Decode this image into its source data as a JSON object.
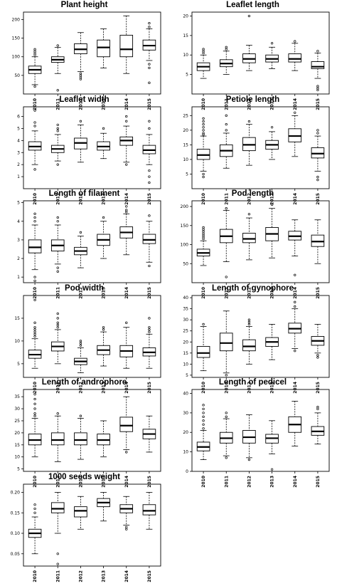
{
  "chart_data": [
    {
      "type": "box",
      "title": "Plant height",
      "categories": [
        "2010",
        "2011",
        "2012",
        "2013",
        "2014",
        "2015"
      ],
      "ylim": [
        0,
        220
      ],
      "yticks": [
        50,
        100,
        150,
        200
      ],
      "boxes": [
        {
          "low": 25,
          "q1": 55,
          "median": 65,
          "q3": 75,
          "high": 100,
          "outliers": [
            105,
            110,
            115,
            120,
            20
          ]
        },
        {
          "low": 55,
          "q1": 85,
          "median": 92,
          "q3": 100,
          "high": 125,
          "outliers": [
            130,
            10
          ]
        },
        {
          "low": 60,
          "q1": 108,
          "median": 120,
          "q3": 135,
          "high": 165,
          "outliers": [
            55,
            50,
            45,
            40
          ]
        },
        {
          "low": 70,
          "q1": 100,
          "median": 125,
          "q3": 145,
          "high": 175,
          "outliers": []
        },
        {
          "low": 55,
          "q1": 100,
          "median": 120,
          "q3": 158,
          "high": 210,
          "outliers": []
        },
        {
          "low": 90,
          "q1": 118,
          "median": 130,
          "q3": 145,
          "high": 175,
          "outliers": [
            180,
            190,
            80,
            70,
            30
          ]
        }
      ]
    },
    {
      "type": "box",
      "title": "Leaflet length",
      "categories": [
        "2010",
        "2011",
        "2012",
        "2013",
        "2014",
        "2015"
      ],
      "ylim": [
        0,
        21
      ],
      "yticks": [
        5,
        10,
        15,
        20
      ],
      "boxes": [
        {
          "low": 4,
          "q1": 6,
          "median": 7,
          "q3": 8,
          "high": 10,
          "outliers": [
            10.5,
            11,
            11.5
          ]
        },
        {
          "low": 5,
          "q1": 7,
          "median": 7.8,
          "q3": 8.8,
          "high": 11,
          "outliers": [
            11.5,
            12
          ]
        },
        {
          "low": 6,
          "q1": 8,
          "median": 9,
          "q3": 10.3,
          "high": 12.5,
          "outliers": [
            20
          ]
        },
        {
          "low": 6.5,
          "q1": 8.2,
          "median": 9,
          "q3": 10,
          "high": 12,
          "outliers": [
            13
          ]
        },
        {
          "low": 6,
          "q1": 8.2,
          "median": 9,
          "q3": 10.3,
          "high": 13,
          "outliers": [
            13.5
          ]
        },
        {
          "low": 4,
          "q1": 6.5,
          "median": 7,
          "q3": 8.3,
          "high": 10.5,
          "outliers": [
            11,
            2,
            1.5,
            1
          ]
        }
      ]
    },
    {
      "type": "box",
      "title": "Leaflet width",
      "categories": [
        "2010",
        "2011",
        "2012",
        "2013",
        "2014",
        "2015"
      ],
      "ylim": [
        0,
        6.8
      ],
      "yticks": [
        1,
        2,
        3,
        4,
        5,
        6
      ],
      "boxes": [
        {
          "low": 2,
          "q1": 3.2,
          "median": 3.5,
          "q3": 3.9,
          "high": 4.8,
          "outliers": [
            6.5,
            5.5,
            5.2,
            1.6
          ]
        },
        {
          "low": 2.3,
          "q1": 3,
          "median": 3.3,
          "q3": 3.6,
          "high": 4.5,
          "outliers": [
            4.8,
            5,
            5.3,
            2
          ]
        },
        {
          "low": 2.2,
          "q1": 3.3,
          "median": 3.8,
          "q3": 4.2,
          "high": 5.3,
          "outliers": [
            5.6
          ]
        },
        {
          "low": 2.5,
          "q1": 3.2,
          "median": 3.5,
          "q3": 3.9,
          "high": 4.6,
          "outliers": [
            5
          ]
        },
        {
          "low": 2.2,
          "q1": 3.6,
          "median": 4,
          "q3": 4.3,
          "high": 5.2,
          "outliers": [
            6,
            5.6,
            2
          ]
        },
        {
          "low": 2,
          "q1": 2.9,
          "median": 3.2,
          "q3": 3.6,
          "high": 4.5,
          "outliers": [
            5,
            5.6,
            1.5,
            1,
            0.5
          ]
        }
      ]
    },
    {
      "type": "box",
      "title": "Petiole length",
      "categories": [
        "2010",
        "2011",
        "2012",
        "2013",
        "2014",
        "2015"
      ],
      "ylim": [
        0,
        28
      ],
      "yticks": [
        5,
        10,
        15,
        20,
        25
      ],
      "boxes": [
        {
          "low": 6,
          "q1": 10,
          "median": 11.5,
          "q3": 13.5,
          "high": 18,
          "outliers": [
            18.5,
            19,
            20,
            21,
            22,
            23,
            24,
            5,
            4
          ]
        },
        {
          "low": 7,
          "q1": 11,
          "median": 13,
          "q3": 15,
          "high": 19,
          "outliers": [
            20,
            22,
            25
          ]
        },
        {
          "low": 8,
          "q1": 13,
          "median": 15,
          "q3": 17.5,
          "high": 22,
          "outliers": [
            23
          ]
        },
        {
          "low": 10,
          "q1": 13.5,
          "median": 15,
          "q3": 16.5,
          "high": 19.5,
          "outliers": [
            21
          ]
        },
        {
          "low": 11,
          "q1": 16,
          "median": 18,
          "q3": 20.5,
          "high": 25,
          "outliers": [
            26
          ]
        },
        {
          "low": 6,
          "q1": 10.5,
          "median": 12,
          "q3": 14,
          "high": 18,
          "outliers": [
            19,
            20,
            4,
            3
          ]
        }
      ]
    },
    {
      "type": "box",
      "title": "Length of filament",
      "categories": [
        "2010",
        "2011",
        "2012",
        "2013",
        "2014",
        "2015"
      ],
      "ylim": [
        0.7,
        5.1
      ],
      "yticks": [
        1,
        2,
        3,
        4,
        5
      ],
      "boxes": [
        {
          "low": 1.4,
          "q1": 2.3,
          "median": 2.6,
          "q3": 3,
          "high": 3.8,
          "outliers": [
            4,
            4.2,
            4.4,
            1,
            0.8
          ]
        },
        {
          "low": 1.7,
          "q1": 2.4,
          "median": 2.7,
          "q3": 3,
          "high": 3.8,
          "outliers": [
            4,
            4.2,
            1.5,
            1.3
          ]
        },
        {
          "low": 1.5,
          "q1": 2.2,
          "median": 2.4,
          "q3": 2.6,
          "high": 3.2,
          "outliers": [
            3.4
          ]
        },
        {
          "low": 2,
          "q1": 2.7,
          "median": 3,
          "q3": 3.3,
          "high": 4,
          "outliers": [
            4.2
          ]
        },
        {
          "low": 2.2,
          "q1": 3.1,
          "median": 3.4,
          "q3": 3.7,
          "high": 4.4,
          "outliers": [
            4.5,
            4.6,
            4.8
          ]
        },
        {
          "low": 1.8,
          "q1": 2.8,
          "median": 3,
          "q3": 3.3,
          "high": 4,
          "outliers": [
            4.3,
            1.6
          ]
        }
      ]
    },
    {
      "type": "box",
      "title": "Pod length",
      "categories": [
        "2010",
        "2011",
        "2012",
        "2013",
        "2014",
        "2015"
      ],
      "ylim": [
        0,
        215
      ],
      "yticks": [
        50,
        100,
        150,
        200
      ],
      "boxes": [
        {
          "low": 45,
          "q1": 70,
          "median": 78,
          "q3": 88,
          "high": 110,
          "outliers": [
            115,
            120,
            125,
            130,
            135,
            140,
            145
          ]
        },
        {
          "low": 55,
          "q1": 105,
          "median": 122,
          "q3": 140,
          "high": 190,
          "outliers": [
            195,
            15
          ]
        },
        {
          "low": 60,
          "q1": 105,
          "median": 115,
          "q3": 130,
          "high": 170,
          "outliers": [
            180
          ]
        },
        {
          "low": 65,
          "q1": 110,
          "median": 128,
          "q3": 145,
          "high": 195,
          "outliers": [
            205
          ]
        },
        {
          "low": 70,
          "q1": 112,
          "median": 122,
          "q3": 135,
          "high": 165,
          "outliers": [
            20
          ]
        },
        {
          "low": 50,
          "q1": 95,
          "median": 108,
          "q3": 125,
          "high": 165,
          "outliers": []
        }
      ]
    },
    {
      "type": "box",
      "title": "Pod width",
      "categories": [
        "2010",
        "2011",
        "2012",
        "2013",
        "2014",
        "2015"
      ],
      "ylim": [
        2,
        20
      ],
      "yticks": [
        5,
        10,
        15
      ],
      "boxes": [
        {
          "low": 4,
          "q1": 6.2,
          "median": 7,
          "q3": 8,
          "high": 10.5,
          "outliers": [
            11,
            11.5,
            12,
            12.5,
            13,
            14,
            19
          ]
        },
        {
          "low": 5,
          "q1": 7.8,
          "median": 8.8,
          "q3": 9.8,
          "high": 12.5,
          "outliers": [
            13,
            13.5,
            14,
            15,
            16
          ]
        },
        {
          "low": 3,
          "q1": 4.8,
          "median": 5.5,
          "q3": 6.2,
          "high": 8.5,
          "outliers": [
            9,
            9.5,
            10
          ]
        },
        {
          "low": 4.5,
          "q1": 7,
          "median": 8,
          "q3": 9,
          "high": 12,
          "outliers": [
            12.5,
            13
          ]
        },
        {
          "low": 4,
          "q1": 6.5,
          "median": 7.8,
          "q3": 9,
          "high": 13,
          "outliers": [
            14
          ]
        },
        {
          "low": 4,
          "q1": 6.7,
          "median": 7.5,
          "q3": 8.5,
          "high": 11.5,
          "outliers": [
            12,
            12.5,
            13,
            15
          ]
        }
      ]
    },
    {
      "type": "box",
      "title": "Length of gynophore",
      "categories": [
        "2010",
        "2011",
        "2012",
        "2013",
        "2014",
        "2015"
      ],
      "ylim": [
        4,
        41
      ],
      "yticks": [
        5,
        10,
        15,
        20,
        25,
        30,
        35,
        40
      ],
      "boxes": [
        {
          "low": 7,
          "q1": 13,
          "median": 15,
          "q3": 18,
          "high": 27,
          "outliers": [
            28
          ]
        },
        {
          "low": 6,
          "q1": 16,
          "median": 19.5,
          "q3": 24,
          "high": 34,
          "outliers": [
            5
          ]
        },
        {
          "low": 10,
          "q1": 16,
          "median": 18,
          "q3": 21,
          "high": 27,
          "outliers": [
            28,
            29,
            30
          ]
        },
        {
          "low": 12,
          "q1": 18,
          "median": 20,
          "q3": 22,
          "high": 28,
          "outliers": []
        },
        {
          "low": 17,
          "q1": 24,
          "median": 26,
          "q3": 28.5,
          "high": 35,
          "outliers": [
            36,
            38,
            16
          ]
        },
        {
          "low": 15,
          "q1": 18.5,
          "median": 20.5,
          "q3": 22.5,
          "high": 28,
          "outliers": [
            14,
            13
          ]
        }
      ]
    },
    {
      "type": "box",
      "title": "Length of androphore",
      "categories": [
        "2010",
        "2011",
        "2012",
        "2013",
        "2014",
        "2015"
      ],
      "ylim": [
        4,
        38
      ],
      "yticks": [
        5,
        10,
        15,
        20,
        25,
        30,
        35
      ],
      "boxes": [
        {
          "low": 10,
          "q1": 15,
          "median": 17,
          "q3": 19.5,
          "high": 26,
          "outliers": [
            27,
            28,
            30,
            32,
            34,
            36
          ]
        },
        {
          "low": 8,
          "q1": 15,
          "median": 17,
          "q3": 20,
          "high": 27,
          "outliers": [
            28
          ]
        },
        {
          "low": 9,
          "q1": 15,
          "median": 17,
          "q3": 20,
          "high": 26,
          "outliers": [
            27
          ]
        },
        {
          "low": 10,
          "q1": 15,
          "median": 17,
          "q3": 19.5,
          "high": 25,
          "outliers": []
        },
        {
          "low": 13,
          "q1": 20.5,
          "median": 23,
          "q3": 26.5,
          "high": 35,
          "outliers": [
            12
          ]
        },
        {
          "low": 12,
          "q1": 17.5,
          "median": 19.5,
          "q3": 21.5,
          "high": 27,
          "outliers": []
        }
      ]
    },
    {
      "type": "box",
      "title": "Length of pedicel",
      "categories": [
        "2010",
        "2011",
        "2012",
        "2013",
        "2014",
        "2015"
      ],
      "ylim": [
        0,
        42
      ],
      "yticks": [
        0,
        10,
        20,
        30,
        40
      ],
      "boxes": [
        {
          "low": 6,
          "q1": 10.5,
          "median": 12.5,
          "q3": 15,
          "high": 21,
          "outliers": [
            22,
            24,
            26,
            28,
            30,
            32,
            34
          ]
        },
        {
          "low": 8,
          "q1": 14.5,
          "median": 17,
          "q3": 20,
          "high": 27,
          "outliers": [
            28,
            30,
            7
          ]
        },
        {
          "low": 7,
          "q1": 14.5,
          "median": 17.5,
          "q3": 21,
          "high": 29,
          "outliers": [
            6
          ]
        },
        {
          "low": 9,
          "q1": 14.5,
          "median": 17,
          "q3": 19,
          "high": 26,
          "outliers": [
            1
          ]
        },
        {
          "low": 13,
          "q1": 20,
          "median": 24,
          "q3": 28,
          "high": 36,
          "outliers": []
        },
        {
          "low": 14,
          "q1": 18.5,
          "median": 20.5,
          "q3": 23,
          "high": 30,
          "outliers": [
            32,
            33
          ]
        }
      ]
    },
    {
      "type": "box",
      "title": "1000 seeds weight",
      "categories": [
        "2010",
        "2011",
        "2012",
        "2013",
        "2014",
        "2015"
      ],
      "ylim": [
        0.02,
        0.22
      ],
      "yticks": [
        0.05,
        0.1,
        0.15,
        0.2
      ],
      "ytick_labels": [
        "0.05",
        "0.10",
        "0.15",
        "0.20"
      ],
      "boxes": [
        {
          "low": 0.05,
          "q1": 0.09,
          "median": 0.1,
          "q3": 0.11,
          "high": 0.14,
          "outliers": [
            0.15,
            0.16,
            0.17
          ]
        },
        {
          "low": 0.1,
          "q1": 0.15,
          "median": 0.16,
          "q3": 0.175,
          "high": 0.2,
          "outliers": [
            0.05,
            0.025
          ]
        },
        {
          "low": 0.11,
          "q1": 0.14,
          "median": 0.155,
          "q3": 0.165,
          "high": 0.19,
          "outliers": []
        },
        {
          "low": 0.13,
          "q1": 0.165,
          "median": 0.175,
          "q3": 0.185,
          "high": 0.2,
          "outliers": []
        },
        {
          "low": 0.12,
          "q1": 0.15,
          "median": 0.16,
          "q3": 0.17,
          "high": 0.19,
          "outliers": [
            0.11,
            0.115
          ]
        },
        {
          "low": 0.11,
          "q1": 0.145,
          "median": 0.155,
          "q3": 0.17,
          "high": 0.2,
          "outliers": []
        }
      ]
    }
  ]
}
